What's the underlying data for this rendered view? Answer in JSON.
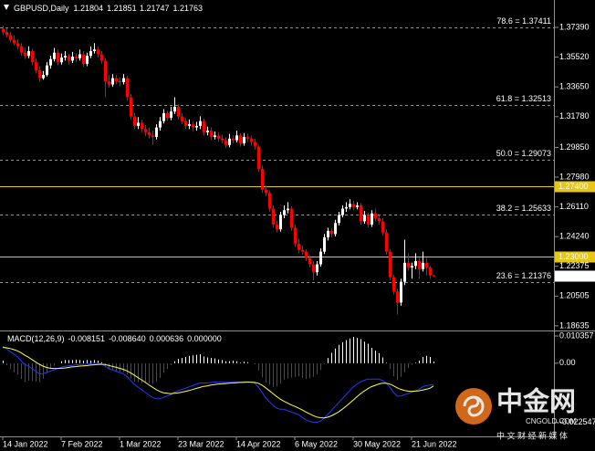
{
  "chart_data": [
    {
      "type": "candlestick",
      "title": "GBPUSD,Daily",
      "up_color": "#ffffff",
      "down_color": "#ff0000",
      "xlim": [
        -0.75,
        151.25
      ],
      "xticks": [
        {
          "value": 0,
          "label": "14 Jan 2022"
        },
        {
          "value": 16,
          "label": "7 Feb 2022"
        },
        {
          "value": 32,
          "label": "1 Mar 2022"
        },
        {
          "value": 48,
          "label": "23 Mar 2022"
        },
        {
          "value": 64,
          "label": "14 Apr 2022"
        },
        {
          "value": 80,
          "label": "6 May 2022"
        },
        {
          "value": 96,
          "label": "30 May 2022"
        },
        {
          "value": 112,
          "label": "21 Jun 2022"
        }
      ],
      "ylim": [
        1.184,
        1.3911
      ],
      "yticks": [
        {
          "value": 1.3739,
          "label": "1.37390"
        },
        {
          "value": 1.3552,
          "label": "1.35520"
        },
        {
          "value": 1.3365,
          "label": "1.33650"
        },
        {
          "value": 1.3178,
          "label": "1.31780"
        },
        {
          "value": 1.2985,
          "label": "1.29850"
        },
        {
          "value": 1.2798,
          "label": "1.27980"
        },
        {
          "value": 1.2611,
          "label": "1.26110"
        },
        {
          "value": 1.2424,
          "label": "1.24240"
        },
        {
          "value": 1.22375,
          "label": "1.22375"
        },
        {
          "value": 1.20505,
          "label": "1.20505"
        },
        {
          "value": 1.18635,
          "label": "1.18635"
        }
      ],
      "fib_levels": [
        {
          "value": 1.37411,
          "label": "78.6 = 1.37411"
        },
        {
          "value": 1.32513,
          "label": "61.8 = 1.32513"
        },
        {
          "value": 1.29073,
          "label": "50.0 = 1.29073"
        },
        {
          "value": 1.25633,
          "label": "38.2 = 1.25633"
        },
        {
          "value": 1.21376,
          "label": "23.6 = 1.21376"
        }
      ],
      "fib_color": "#909090",
      "hlines": [
        {
          "value": 1.274,
          "label": "1.27400"
        },
        {
          "value": 1.23,
          "label": "1.23000"
        }
      ],
      "hline_color": "#e6c619",
      "candles": [
        [
          1.373,
          1.375,
          1.369,
          1.371
        ],
        [
          1.371,
          1.3735,
          1.3675,
          1.369
        ],
        [
          1.369,
          1.3712,
          1.3645,
          1.366
        ],
        [
          1.366,
          1.369,
          1.3625,
          1.364
        ],
        [
          1.364,
          1.3665,
          1.36,
          1.362
        ],
        [
          1.362,
          1.364,
          1.356,
          1.358
        ],
        [
          1.358,
          1.361,
          1.354,
          1.356
        ],
        [
          1.356,
          1.362,
          1.3545,
          1.359
        ],
        [
          1.359,
          1.3605,
          1.35,
          1.352
        ],
        [
          1.352,
          1.3545,
          1.345,
          1.347
        ],
        [
          1.347,
          1.3495,
          1.34,
          1.342
        ],
        [
          1.342,
          1.3465,
          1.341,
          1.344
        ],
        [
          1.344,
          1.352,
          1.343,
          1.35
        ],
        [
          1.35,
          1.356,
          1.348,
          1.354
        ],
        [
          1.354,
          1.361,
          1.3525,
          1.358
        ],
        [
          1.358,
          1.36,
          1.35,
          1.352
        ],
        [
          1.352,
          1.3575,
          1.3505,
          1.355
        ],
        [
          1.355,
          1.359,
          1.353,
          1.356
        ],
        [
          1.356,
          1.3575,
          1.3505,
          1.353
        ],
        [
          1.353,
          1.3585,
          1.3515,
          1.3555
        ],
        [
          1.3555,
          1.3575,
          1.352,
          1.3545
        ],
        [
          1.3545,
          1.36,
          1.353,
          1.357
        ],
        [
          1.357,
          1.359,
          1.349,
          1.351
        ],
        [
          1.351,
          1.358,
          1.3495,
          1.356
        ],
        [
          1.356,
          1.362,
          1.3545,
          1.359
        ],
        [
          1.359,
          1.364,
          1.3575,
          1.36
        ],
        [
          1.36,
          1.362,
          1.355,
          1.357
        ],
        [
          1.357,
          1.359,
          1.351,
          1.353
        ],
        [
          1.353,
          1.3545,
          1.33,
          1.34
        ],
        [
          1.34,
          1.344,
          1.336,
          1.338
        ],
        [
          1.338,
          1.3445,
          1.3365,
          1.342
        ],
        [
          1.342,
          1.344,
          1.338,
          1.34
        ],
        [
          1.34,
          1.3425,
          1.337,
          1.3395
        ],
        [
          1.3395,
          1.3445,
          1.338,
          1.342
        ],
        [
          1.342,
          1.3435,
          1.328,
          1.33
        ],
        [
          1.33,
          1.332,
          1.316,
          1.318
        ],
        [
          1.318,
          1.32,
          1.31,
          1.312
        ],
        [
          1.312,
          1.3175,
          1.31,
          1.314
        ],
        [
          1.314,
          1.316,
          1.308,
          1.31
        ],
        [
          1.31,
          1.3125,
          1.3055,
          1.308
        ],
        [
          1.308,
          1.311,
          1.304,
          1.306
        ],
        [
          1.306,
          1.309,
          1.3,
          1.305
        ],
        [
          1.305,
          1.313,
          1.3035,
          1.311
        ],
        [
          1.311,
          1.3175,
          1.309,
          1.315
        ],
        [
          1.315,
          1.3225,
          1.3135,
          1.32
        ],
        [
          1.32,
          1.3215,
          1.315,
          1.317
        ],
        [
          1.317,
          1.324,
          1.3155,
          1.321
        ],
        [
          1.321,
          1.33,
          1.3195,
          1.324
        ],
        [
          1.324,
          1.3255,
          1.316,
          1.318
        ],
        [
          1.318,
          1.32,
          1.313,
          1.315
        ],
        [
          1.315,
          1.317,
          1.31,
          1.312
        ],
        [
          1.312,
          1.316,
          1.31,
          1.313
        ],
        [
          1.313,
          1.315,
          1.3085,
          1.311
        ],
        [
          1.311,
          1.3145,
          1.309,
          1.312
        ],
        [
          1.312,
          1.318,
          1.31,
          1.315
        ],
        [
          1.315,
          1.3165,
          1.306,
          1.308
        ],
        [
          1.308,
          1.3115,
          1.306,
          1.309
        ],
        [
          1.309,
          1.311,
          1.303,
          1.305
        ],
        [
          1.305,
          1.3085,
          1.3035,
          1.306
        ],
        [
          1.306,
          1.308,
          1.302,
          1.304
        ],
        [
          1.304,
          1.3065,
          1.301,
          1.303
        ],
        [
          1.303,
          1.305,
          1.298,
          1.3
        ],
        [
          1.3,
          1.307,
          1.2985,
          1.304
        ],
        [
          1.304,
          1.306,
          1.301,
          1.303
        ],
        [
          1.303,
          1.309,
          1.3015,
          1.306
        ],
        [
          1.306,
          1.3075,
          1.299,
          1.301
        ],
        [
          1.301,
          1.3075,
          1.2995,
          1.305
        ],
        [
          1.305,
          1.307,
          1.302,
          1.304
        ],
        [
          1.304,
          1.306,
          1.2995,
          1.302
        ],
        [
          1.302,
          1.304,
          1.297,
          1.299
        ],
        [
          1.299,
          1.3,
          1.283,
          1.285
        ],
        [
          1.285,
          1.287,
          1.27,
          1.272
        ],
        [
          1.272,
          1.2745,
          1.268,
          1.27
        ],
        [
          1.27,
          1.2715,
          1.258,
          1.26
        ],
        [
          1.26,
          1.262,
          1.248,
          1.25
        ],
        [
          1.25,
          1.2525,
          1.245,
          1.247
        ],
        [
          1.247,
          1.258,
          1.2455,
          1.256
        ],
        [
          1.256,
          1.262,
          1.254,
          1.259
        ],
        [
          1.259,
          1.264,
          1.257,
          1.26
        ],
        [
          1.26,
          1.2615,
          1.246,
          1.248
        ],
        [
          1.248,
          1.25,
          1.236,
          1.238
        ],
        [
          1.238,
          1.241,
          1.232,
          1.234
        ],
        [
          1.234,
          1.237,
          1.231,
          1.233
        ],
        [
          1.233,
          1.2345,
          1.227,
          1.229
        ],
        [
          1.229,
          1.231,
          1.223,
          1.225
        ],
        [
          1.225,
          1.227,
          1.215,
          1.22
        ],
        [
          1.22,
          1.227,
          1.218,
          1.225
        ],
        [
          1.225,
          1.235,
          1.2235,
          1.233
        ],
        [
          1.233,
          1.244,
          1.2315,
          1.242
        ],
        [
          1.242,
          1.248,
          1.24,
          1.246
        ],
        [
          1.246,
          1.2475,
          1.242,
          1.244
        ],
        [
          1.244,
          1.253,
          1.2425,
          1.251
        ],
        [
          1.251,
          1.258,
          1.2495,
          1.256
        ],
        [
          1.256,
          1.262,
          1.2545,
          1.26
        ],
        [
          1.26,
          1.264,
          1.258,
          1.261
        ],
        [
          1.261,
          1.266,
          1.2595,
          1.263
        ],
        [
          1.263,
          1.265,
          1.259,
          1.261
        ],
        [
          1.261,
          1.264,
          1.2595,
          1.262
        ],
        [
          1.262,
          1.2635,
          1.25,
          1.252
        ],
        [
          1.252,
          1.2585,
          1.2505,
          1.256
        ],
        [
          1.256,
          1.2575,
          1.248,
          1.25
        ],
        [
          1.25,
          1.259,
          1.2485,
          1.257
        ],
        [
          1.257,
          1.26,
          1.252,
          1.254
        ],
        [
          1.254,
          1.256,
          1.25,
          1.252
        ],
        [
          1.252,
          1.254,
          1.243,
          1.245
        ],
        [
          1.245,
          1.247,
          1.231,
          1.233
        ],
        [
          1.233,
          1.2345,
          1.215,
          1.217
        ],
        [
          1.217,
          1.2185,
          1.206,
          1.208
        ],
        [
          1.208,
          1.2095,
          1.1934,
          1.201
        ],
        [
          1.201,
          1.216,
          1.199,
          1.214
        ],
        [
          1.214,
          1.2405,
          1.212,
          1.226
        ],
        [
          1.226,
          1.232,
          1.221,
          1.223
        ],
        [
          1.223,
          1.226,
          1.216,
          1.224
        ],
        [
          1.224,
          1.232,
          1.222,
          1.227
        ],
        [
          1.227,
          1.229,
          1.216,
          1.222
        ],
        [
          1.222,
          1.233,
          1.2205,
          1.226
        ],
        [
          1.226,
          1.229,
          1.218,
          1.223
        ],
        [
          1.223,
          1.224,
          1.216,
          1.218
        ],
        [
          1.21804,
          1.21851,
          1.21747,
          1.21763
        ]
      ]
    },
    {
      "type": "macd",
      "title": "MACD(12,26,9)",
      "header_values": [
        "-0.008151",
        "-0.008640",
        "0.000636",
        "0.000000"
      ],
      "ylim": [
        -0.0278,
        0.0121
      ],
      "yticks": [
        {
          "value": 0.010357,
          "label": "0.010357"
        },
        {
          "value": 0,
          "label": "0.00"
        },
        {
          "value": -0.022547,
          "label": "-0.022547"
        }
      ],
      "histogram_up_color": "#ffffff",
      "histogram_down_color": "#ff0000",
      "main_color": "#1e3cff",
      "signal_color": "#ffff40",
      "histogram": [
        0.001,
        -0.0008,
        -0.0022,
        -0.0034,
        -0.0044,
        -0.006,
        -0.0072,
        -0.0066,
        -0.0068,
        -0.007,
        -0.0072,
        -0.0058,
        -0.0038,
        -0.0022,
        -0.001,
        0,
        0.0008,
        0.0012,
        0.0012,
        0.0012,
        0.0014,
        0.0012,
        0.001,
        0.0012,
        0.001,
        0.0012,
        0.001,
        0.0004,
        -0.001,
        -0.0024,
        -0.0026,
        -0.003,
        -0.0032,
        -0.0034,
        -0.0042,
        -0.0058,
        -0.007,
        -0.0072,
        -0.0074,
        -0.0076,
        -0.0076,
        -0.0078,
        -0.007,
        -0.0056,
        -0.0036,
        -0.0022,
        -0.0008,
        0.0008,
        0.0016,
        0.002,
        0.0024,
        0.0028,
        0.003,
        0.0032,
        0.0034,
        0.0026,
        0.0022,
        0.002,
        0.0018,
        0.0014,
        0.0012,
        0.0008,
        0.0008,
        0.001,
        0.0008,
        0.0002,
        0.0006,
        0.0004,
        0,
        -0.0004,
        -0.0028,
        -0.0054,
        -0.0074,
        -0.0082,
        -0.009,
        -0.0088,
        -0.0078,
        -0.0062,
        -0.0058,
        -0.0054,
        -0.0052,
        -0.005,
        -0.0056,
        -0.006,
        -0.0056,
        -0.0052,
        -0.0042,
        -0.0026,
        -0.0004,
        0.002,
        0.004,
        0.0056,
        0.007,
        0.008,
        0.0088,
        0.0094,
        0.01,
        0.0096,
        0.0092,
        0.0082,
        0.0074,
        0.0058,
        0.0048,
        0.0038,
        0.0022,
        0.0002,
        -0.0022,
        -0.005,
        -0.0064,
        -0.0052,
        -0.0034,
        -0.0018,
        -0.0006,
        0.0002,
        0.001,
        0.0024,
        0.0028,
        0.0024,
        0.000636
      ],
      "main": [
        0.0065,
        0.0055,
        0.0045,
        0.0035,
        0.0025,
        0.001,
        -0.0005,
        -0.001,
        -0.002,
        -0.003,
        -0.004,
        -0.004,
        -0.0035,
        -0.003,
        -0.0025,
        -0.002,
        -0.0015,
        -0.0012,
        -0.001,
        -0.0008,
        -0.0006,
        -0.0005,
        -0.0005,
        -0.0003,
        -0.0002,
        0,
        0,
        -0.0002,
        -0.001,
        -0.002,
        -0.0025,
        -0.003,
        -0.0035,
        -0.004,
        -0.005,
        -0.0065,
        -0.008,
        -0.009,
        -0.01,
        -0.011,
        -0.012,
        -0.013,
        -0.0135,
        -0.0135,
        -0.013,
        -0.0125,
        -0.012,
        -0.011,
        -0.0105,
        -0.01,
        -0.0095,
        -0.009,
        -0.0085,
        -0.008,
        -0.0075,
        -0.0075,
        -0.0075,
        -0.0073,
        -0.0072,
        -0.0072,
        -0.0072,
        -0.0073,
        -0.0072,
        -0.007,
        -0.007,
        -0.0072,
        -0.007,
        -0.007,
        -0.0072,
        -0.0075,
        -0.009,
        -0.011,
        -0.013,
        -0.0145,
        -0.016,
        -0.017,
        -0.0175,
        -0.0175,
        -0.018,
        -0.0185,
        -0.019,
        -0.0195,
        -0.0205,
        -0.0215,
        -0.022,
        -0.0225,
        -0.0225,
        -0.022,
        -0.021,
        -0.0195,
        -0.018,
        -0.0165,
        -0.015,
        -0.0135,
        -0.012,
        -0.0105,
        -0.009,
        -0.008,
        -0.007,
        -0.0065,
        -0.006,
        -0.006,
        -0.006,
        -0.006,
        -0.0065,
        -0.0075,
        -0.009,
        -0.011,
        -0.0125,
        -0.0125,
        -0.012,
        -0.0115,
        -0.011,
        -0.0105,
        -0.01,
        -0.009,
        -0.0085,
        -0.0083,
        -0.008151
      ],
      "signal": [
        0.006,
        0.0059,
        0.0056,
        0.0052,
        0.0047,
        0.004,
        0.0031,
        0.0023,
        0.0014,
        0.0005,
        -0.0004,
        -0.0011,
        -0.0016,
        -0.0019,
        -0.002,
        -0.002,
        -0.0019,
        -0.0018,
        -0.0016,
        -0.0014,
        -0.0013,
        -0.0011,
        -0.001,
        -0.0009,
        -0.0007,
        -0.0006,
        -0.0005,
        -0.0004,
        -0.0005,
        -0.0008,
        -0.0012,
        -0.0015,
        -0.0019,
        -0.0023,
        -0.0029,
        -0.0036,
        -0.0045,
        -0.0054,
        -0.0063,
        -0.0072,
        -0.0082,
        -0.0091,
        -0.01,
        -0.0107,
        -0.0112,
        -0.0114,
        -0.0116,
        -0.0114,
        -0.0113,
        -0.011,
        -0.0107,
        -0.0104,
        -0.01,
        -0.0096,
        -0.0092,
        -0.0088,
        -0.0086,
        -0.0083,
        -0.0081,
        -0.0079,
        -0.0078,
        -0.0077,
        -0.0076,
        -0.0075,
        -0.0074,
        -0.0073,
        -0.0073,
        -0.0072,
        -0.0072,
        -0.0073,
        -0.0076,
        -0.0083,
        -0.0093,
        -0.0104,
        -0.0115,
        -0.0126,
        -0.0136,
        -0.0144,
        -0.0151,
        -0.0158,
        -0.0164,
        -0.017,
        -0.0177,
        -0.0185,
        -0.0192,
        -0.0199,
        -0.0204,
        -0.0207,
        -0.0208,
        -0.0205,
        -0.02,
        -0.0193,
        -0.0185,
        -0.0175,
        -0.0164,
        -0.0152,
        -0.014,
        -0.0128,
        -0.0116,
        -0.0106,
        -0.0097,
        -0.0089,
        -0.0084,
        -0.0079,
        -0.0076,
        -0.0076,
        -0.0079,
        -0.0085,
        -0.0093,
        -0.0099,
        -0.0103,
        -0.0106,
        -0.0107,
        -0.0106,
        -0.0105,
        -0.0102,
        -0.0099,
        -0.0095,
        -0.00864
      ]
    }
  ],
  "watermark": {
    "brand": "中金网",
    "site": "CNGOLD.COM",
    "slogan": "中 文 财 经 新 媒 体"
  }
}
